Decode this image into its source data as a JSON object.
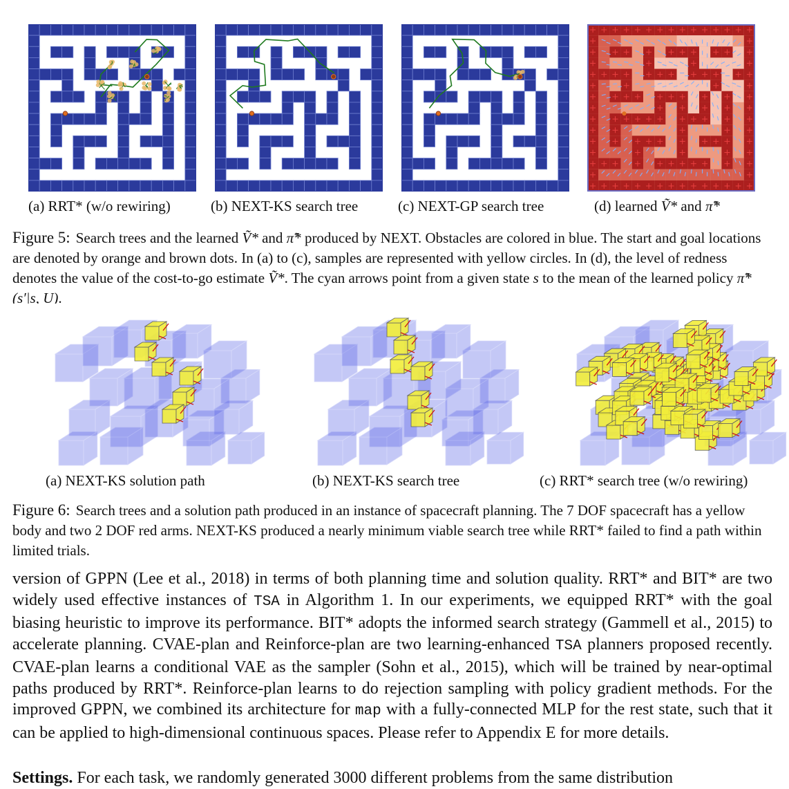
{
  "figure5": {
    "subcaptions": {
      "a": "(a) RRT* (w/o rewiring)",
      "b": "(b) NEXT-KS search tree",
      "c": "(c) NEXT-GP search tree",
      "d_prefix": "(d) learned ",
      "d_v": "Ṽ*",
      "d_and": " and ",
      "d_pi": "π̃*"
    },
    "label": "Figure 5:",
    "text_1": "Search trees and the learned ",
    "v_sym": "Ṽ*",
    "text_and": " and ",
    "pi_sym": "π̃*",
    "text_2": " produced by NEXT. Obstacles are colored in blue. The start and goal locations are denoted by orange and brown dots. In (a) to (c), samples are represented with yellow circles. In (d), the level of redness denotes the value of the cost-to-go estimate ",
    "text_3": ". The cyan arrows point from a given state ",
    "s_sym": "s",
    "text_4": " to the mean of the learned policy ",
    "policy_sym": "π̃*(s′|s, U)",
    "text_5": "."
  },
  "figure6": {
    "subcaptions": {
      "a": "(a) NEXT-KS solution path",
      "b": "(b) NEXT-KS search tree",
      "c": "(c) RRT* search tree (w/o rewiring)"
    },
    "label": "Figure 6:",
    "text": "Search trees and a solution path produced in an instance of spacecraft planning. The 7 DOF spacecraft has a yellow body and two 2 DOF red arms. NEXT-KS produced a nearly minimum viable search tree while RRT* failed to find a path within limited trials."
  },
  "body": {
    "p1_a": "version of GPPN (Lee et al., 2018) in terms of both planning time and solution quality. RRT* and BIT* are two widely used effective instances of ",
    "tsa_1": "TSA",
    "p1_b": " in Algorithm 1. In our experiments, we equipped RRT* with the goal biasing heuristic to improve its performance. BIT* adopts the informed search strategy (Gammell et al., 2015) to accelerate planning. CVAE-plan and Reinforce-plan are two learning-enhanced ",
    "tsa_2": "TSA",
    "p1_c": " planners proposed recently. CVAE-plan learns a conditional VAE as the sampler (Sohn et al., 2015), which will be trained by near-optimal paths produced by RRT*. Reinforce-plan learns to do rejection sampling with policy gradient methods. For the improved GPPN, we combined its architecture for ",
    "map_code": "map",
    "p1_d": " with a fully-connected MLP for the rest state, such that it can be applied to high-dimensional continuous spaces. Please refer to Appendix E for more details.",
    "p2_bold": "Settings.",
    "p2_text": " For each task, we randomly generated 3000 different problems from the same distribution"
  },
  "colors": {
    "obstacle": "#2b3a9c",
    "grid_line": "#6f7fd0",
    "tree": "#1f7a1f",
    "sample": "#e8b86a",
    "start": "#e07020",
    "goal": "#8b3a1a",
    "redness_high": "#a81818",
    "redness_low": "#f0a088",
    "arrow": "#7fb0ff",
    "cube_blue": "#5a64e6",
    "cube_yellow": "#f2ee3a",
    "arm_red": "#cc1a1a"
  }
}
